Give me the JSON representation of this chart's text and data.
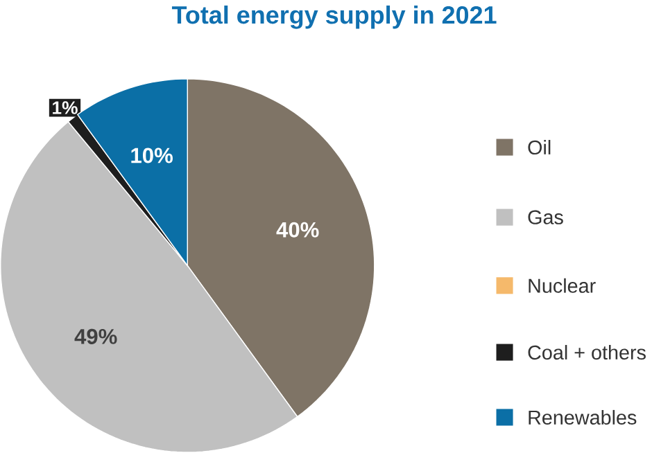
{
  "chart_data": {
    "type": "pie",
    "title": "Total energy supply in 2021",
    "categories": [
      "Oil",
      "Gas",
      "Nuclear",
      "Coal + others",
      "Renewables"
    ],
    "values": [
      40,
      49,
      0,
      1,
      10
    ],
    "colors": [
      "#7f7466",
      "#c0c0c0",
      "#f5b96b",
      "#1e1e1e",
      "#0b6fa6"
    ],
    "value_labels": [
      "40%",
      "49%",
      null,
      "1%",
      "10%"
    ],
    "legend": "right"
  }
}
